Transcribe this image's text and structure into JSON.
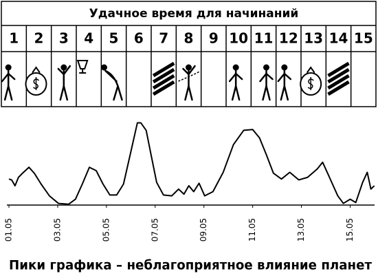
{
  "header": {
    "title": "Удачное время для начинаний",
    "days": [
      "1",
      "2",
      "3",
      "4",
      "5",
      "6",
      "7",
      "8",
      "9",
      "10",
      "11",
      "12",
      "13",
      "14",
      "15"
    ]
  },
  "chart_data": {
    "type": "line",
    "caption": "Пики графика – неблагоприятное влияние планет",
    "xlim": [
      1,
      16
    ],
    "ylim": [
      0,
      100
    ],
    "xticks": [
      {
        "value": 1,
        "label": "01.05"
      },
      {
        "value": 3,
        "label": "03.05"
      },
      {
        "value": 5,
        "label": "05.05"
      },
      {
        "value": 7,
        "label": "07.05"
      },
      {
        "value": 9,
        "label": "09.05"
      },
      {
        "value": 11,
        "label": "11.05"
      },
      {
        "value": 13,
        "label": "13.05"
      },
      {
        "value": 15,
        "label": "15.05"
      }
    ],
    "color": "#000000",
    "x": [
      1.0,
      1.11,
      1.25,
      1.39,
      1.56,
      1.82,
      2.04,
      2.32,
      2.66,
      3.03,
      3.45,
      3.73,
      4.01,
      4.3,
      4.58,
      4.86,
      5.14,
      5.42,
      5.7,
      5.99,
      6.27,
      6.41,
      6.63,
      6.83,
      7.06,
      7.34,
      7.68,
      7.96,
      8.18,
      8.38,
      8.58,
      8.8,
      9.03,
      9.37,
      9.79,
      10.21,
      10.63,
      11.0,
      11.28,
      11.56,
      11.85,
      12.18,
      12.52,
      12.89,
      13.25,
      13.65,
      13.87,
      14.15,
      14.49,
      14.72,
      15.0,
      15.23,
      15.51,
      15.7,
      15.85,
      15.99
    ],
    "values": [
      31,
      30,
      23,
      33,
      38,
      45,
      38,
      25,
      11,
      2,
      1,
      7,
      25,
      45,
      41,
      25,
      12,
      12,
      25,
      62,
      98,
      98,
      89,
      60,
      27,
      12,
      11,
      19,
      13,
      23,
      16,
      26,
      11,
      16,
      39,
      72,
      89,
      90,
      80,
      60,
      38,
      31,
      39,
      30,
      33,
      43,
      51,
      33,
      11,
      2,
      7,
      3,
      27,
      39,
      19,
      23
    ]
  }
}
